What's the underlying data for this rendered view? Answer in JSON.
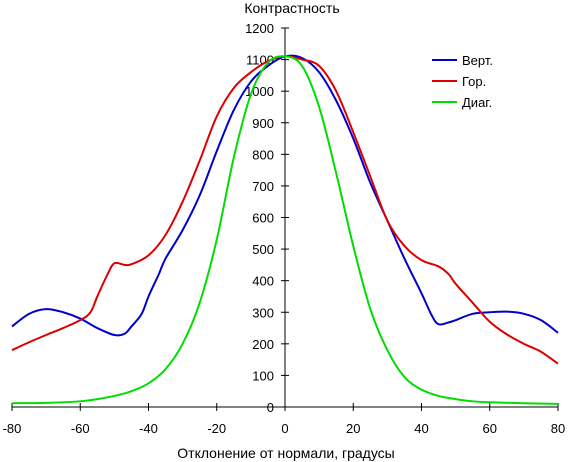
{
  "chart_data": {
    "type": "line",
    "title": "",
    "ylabel": "Контрастность",
    "xlabel": "Отклонение от нормали, градусы",
    "xlim": [
      -80,
      80
    ],
    "ylim": [
      0,
      1200
    ],
    "x_ticks": [
      -80,
      -60,
      -40,
      -20,
      0,
      20,
      40,
      60,
      80
    ],
    "x_tick_labels": [
      "-80",
      "-60",
      "-40",
      "-20",
      "0",
      "20",
      "40",
      "60",
      "80"
    ],
    "y_ticks": [
      0,
      100,
      200,
      300,
      400,
      500,
      600,
      700,
      800,
      900,
      1000,
      1100,
      1200
    ],
    "y_tick_labels": [
      "0",
      "100",
      "200",
      "300",
      "400",
      "500",
      "600",
      "700",
      "800",
      "900",
      "1000",
      "1100",
      "1200"
    ],
    "grid": false,
    "legend_position": "top-right",
    "series": [
      {
        "name": "Верт.",
        "color": "#0000cc",
        "x": [
          -80,
          -75,
          -70,
          -65,
          -60,
          -55,
          -50,
          -47,
          -45,
          -42,
          -40,
          -37,
          -35,
          -30,
          -25,
          -20,
          -15,
          -10,
          -5,
          0,
          5,
          10,
          15,
          20,
          25,
          30,
          35,
          40,
          43,
          45,
          48,
          50,
          55,
          60,
          65,
          70,
          75,
          80
        ],
        "y": [
          255,
          295,
          310,
          300,
          280,
          250,
          228,
          232,
          255,
          295,
          350,
          420,
          470,
          560,
          670,
          810,
          940,
          1030,
          1080,
          1110,
          1105,
          1060,
          970,
          850,
          710,
          590,
          470,
          360,
          290,
          262,
          268,
          275,
          295,
          300,
          302,
          295,
          275,
          235
        ]
      },
      {
        "name": "Гор.",
        "color": "#dd0000",
        "x": [
          -80,
          -75,
          -70,
          -65,
          -60,
          -57,
          -55,
          -52,
          -50,
          -47,
          -45,
          -40,
          -35,
          -30,
          -25,
          -20,
          -15,
          -10,
          -5,
          0,
          5,
          10,
          15,
          20,
          25,
          30,
          35,
          40,
          45,
          48,
          50,
          55,
          60,
          65,
          70,
          75,
          80
        ],
        "y": [
          180,
          205,
          228,
          250,
          275,
          300,
          350,
          420,
          455,
          450,
          452,
          480,
          545,
          650,
          780,
          920,
          1010,
          1060,
          1095,
          1110,
          1100,
          1080,
          1000,
          870,
          730,
          590,
          510,
          465,
          445,
          420,
          390,
          330,
          270,
          230,
          200,
          175,
          137
        ]
      },
      {
        "name": "Диаг.",
        "color": "#00dd00",
        "x": [
          -80,
          -70,
          -60,
          -55,
          -50,
          -45,
          -40,
          -35,
          -30,
          -25,
          -20,
          -15,
          -10,
          -5,
          0,
          5,
          10,
          15,
          20,
          25,
          30,
          35,
          40,
          45,
          50,
          55,
          60,
          70,
          80
        ],
        "y": [
          12,
          13,
          18,
          25,
          35,
          50,
          75,
          120,
          200,
          330,
          530,
          790,
          990,
          1090,
          1110,
          1080,
          950,
          740,
          510,
          310,
          180,
          95,
          55,
          35,
          25,
          18,
          15,
          12,
          10
        ]
      }
    ]
  }
}
